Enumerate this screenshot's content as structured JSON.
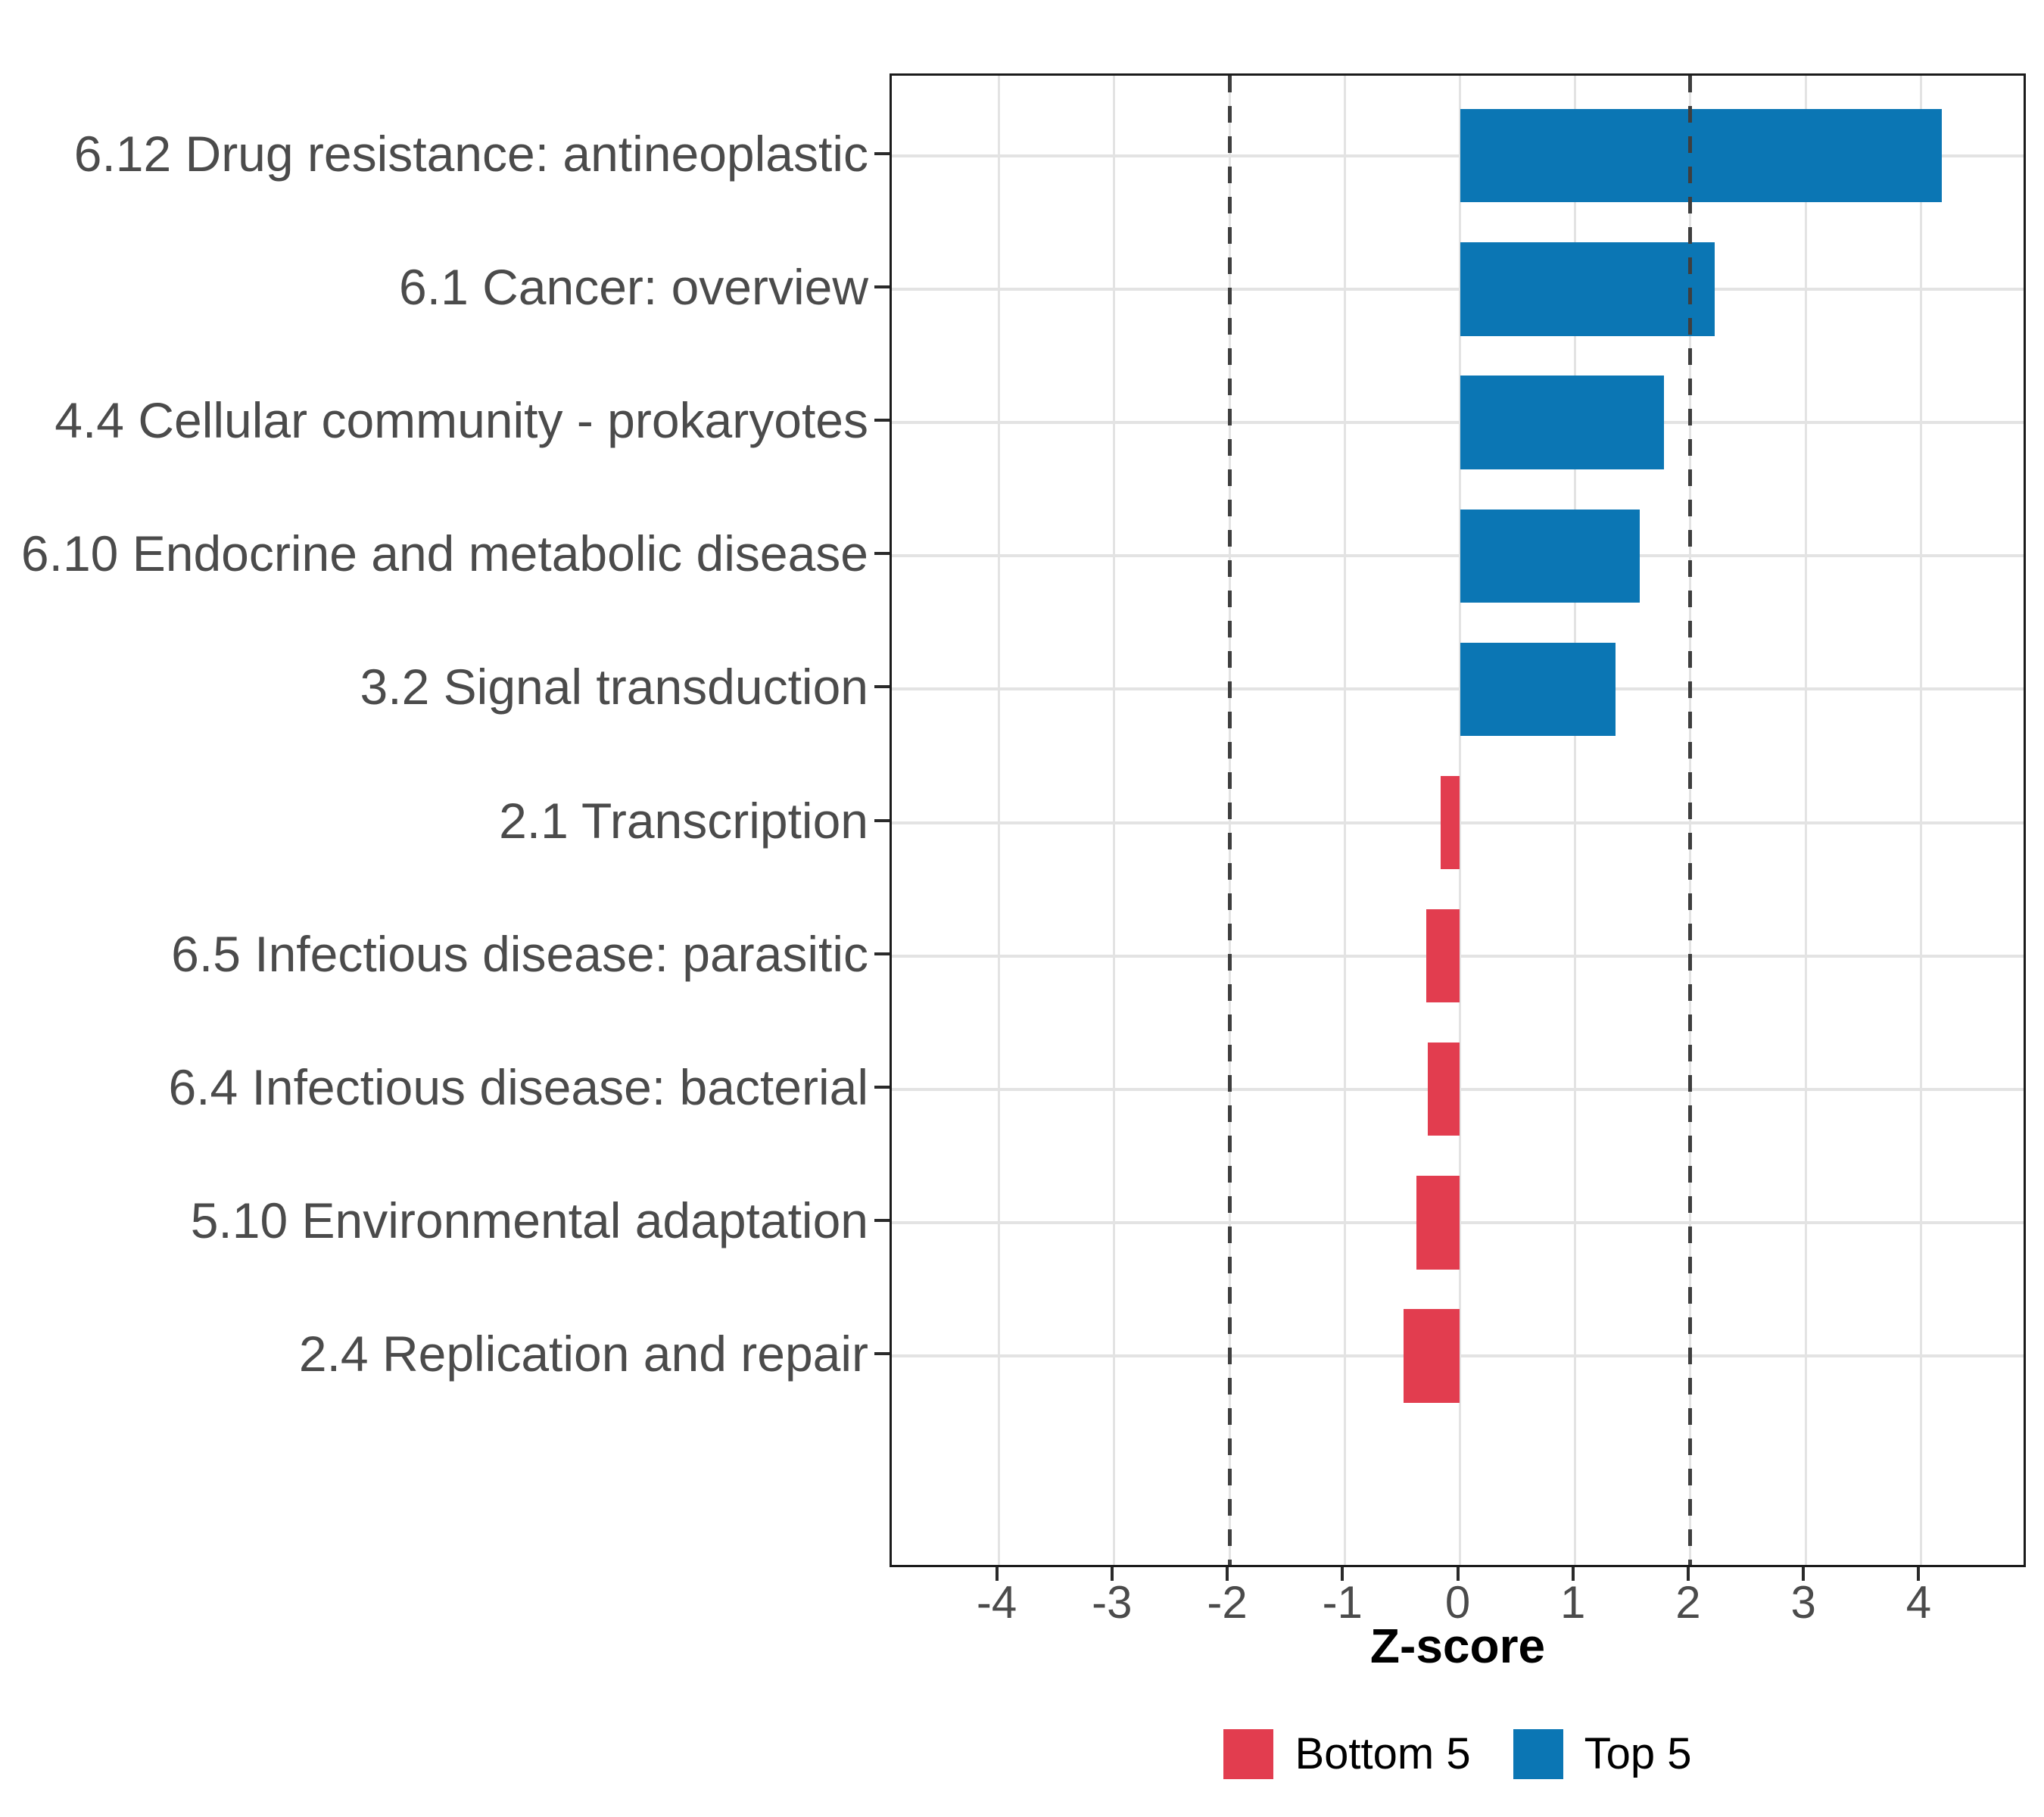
{
  "figure": {
    "background": "#ffffff"
  },
  "chart_data": {
    "type": "bar",
    "orientation": "horizontal",
    "title": "",
    "xlabel": "Z-score",
    "ylabel": "",
    "categories": [
      "6.12 Drug resistance: antineoplastic",
      "6.1 Cancer: overview",
      "4.4 Cellular community - prokaryotes",
      "6.10 Endocrine and metabolic disease",
      "3.2 Signal transduction",
      "2.1 Transcription",
      "6.5 Infectious disease: parasitic",
      "6.4 Infectious disease: bacterial",
      "5.10 Environmental adaptation",
      "2.4 Replication and repair"
    ],
    "values": [
      4.18,
      2.21,
      1.77,
      1.56,
      1.35,
      -0.17,
      -0.29,
      -0.28,
      -0.38,
      -0.49
    ],
    "groups": [
      "Top 5",
      "Top 5",
      "Top 5",
      "Top 5",
      "Top 5",
      "Bottom 5",
      "Bottom 5",
      "Bottom 5",
      "Bottom 5",
      "Bottom 5"
    ],
    "colors": {
      "Top 5": "#0b76b4",
      "Bottom 5": "#e23d4f"
    },
    "xlim": [
      -4.93,
      4.93
    ],
    "xticks": [
      -4,
      -3,
      -2,
      -1,
      0,
      1,
      2,
      3,
      4
    ],
    "reference_lines": [
      -2,
      2
    ],
    "grid": true,
    "bar_width_fraction": 0.7,
    "legend_position": "bottom",
    "legend": [
      {
        "label": "Bottom 5",
        "color": "#e23d4f"
      },
      {
        "label": "Top 5",
        "color": "#0b76b4"
      }
    ]
  },
  "style": {
    "grid_color": "#e3e3e3",
    "axis_text_color": "#4b4b4b",
    "title_color": "#000000",
    "tick_color": "#2a2a2a",
    "panel_border_color": "#1b1b1b",
    "reference_line_color": "#3e3e3e"
  }
}
